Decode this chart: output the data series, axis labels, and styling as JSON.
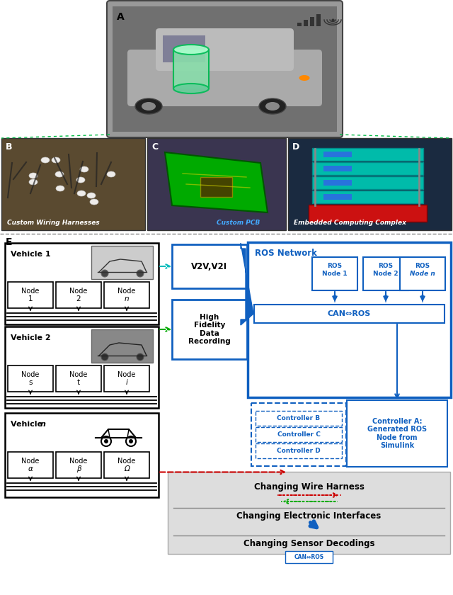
{
  "fig_width": 6.4,
  "fig_height": 8.4,
  "dpi": 100,
  "bg_color": "#ffffff",
  "blue_main": "#1060C0",
  "green_dashed": "#00AA00",
  "red_dashed": "#CC0000",
  "cyan_dashed": "#00BBBB",
  "gray_box": "#DDDDDD",
  "section_labels": [
    "A",
    "B",
    "C",
    "D",
    "E"
  ],
  "photo_labels": [
    "Custom Wiring Harnesses",
    "Custom PCB",
    "Embedded Computing Complex"
  ],
  "vehicle_labels": [
    "Vehicle 1",
    "Vehicle 2",
    "Vehicle n"
  ],
  "node_labels_v1": [
    "Node\n1",
    "Node\n2",
    "Node\nn"
  ],
  "node_labels_v2": [
    "Node\ns",
    "Node\nt",
    "Node\ni"
  ],
  "node_labels_vn": [
    "Node\nα",
    "Node\nβ",
    "Node\nΩ"
  ],
  "ros_nodes": [
    "ROS\nNode 1",
    "ROS\nNode 2",
    "ROS\nNode n"
  ],
  "controller_labels": [
    "Controller B",
    "Controller C",
    "Controller D"
  ],
  "controller_a_label": "Controller A:\nGenerated ROS\nNode from\nSimulink",
  "v2v_label": "V2V,V2I",
  "hfdr_label": "High\nFidelity\nData\nRecording",
  "can_ros_label": "CAN⇔ROS",
  "ros_network_label": "ROS Network",
  "changing_labels": [
    "Changing Wire Harness",
    "Changing Electronic Interfaces",
    "Changing Sensor Decodings"
  ]
}
